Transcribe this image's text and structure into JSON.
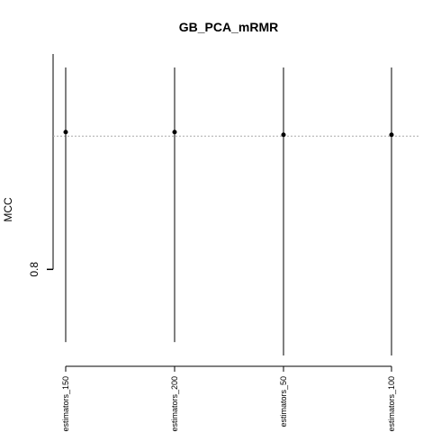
{
  "chart_data": {
    "type": "scatter",
    "title": "GB_PCA_mRMR",
    "xlabel": "",
    "ylabel": "MCC",
    "categories": [
      "estimators_150",
      "estimators_200",
      "estimators_50",
      "estimators_100"
    ],
    "values": [
      0.851,
      0.851,
      0.85,
      0.85
    ],
    "error_low": [
      0.773,
      0.773,
      0.768,
      0.768
    ],
    "error_high": [
      0.875,
      0.875,
      0.875,
      0.875
    ],
    "reference_line": 0.8495,
    "reference_line_style": "dotted",
    "yticks": [
      0.8
    ],
    "ylim": [
      0.764,
      0.88
    ],
    "grid": false,
    "colors": {
      "points": "#000000",
      "whiskers": "#000000",
      "reference": "#aaaaaa",
      "axes": "#000000"
    }
  }
}
